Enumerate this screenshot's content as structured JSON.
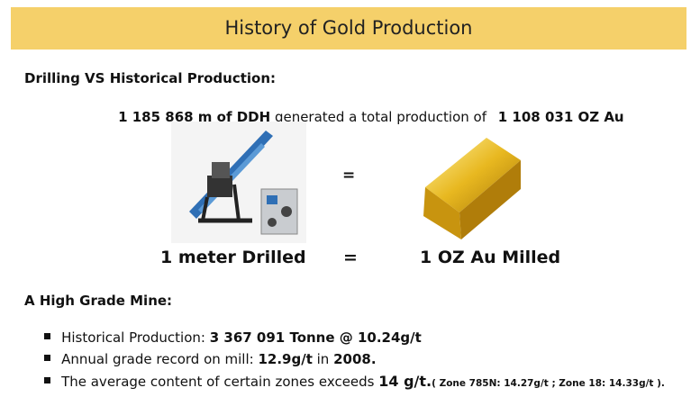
{
  "header": {
    "title": "History of Gold Production"
  },
  "drilling": {
    "heading": "Drilling VS Historical Production:",
    "summary": [
      "1 185 868 m of DDH",
      " generated a total production of ",
      "1 108 031 OZ Au"
    ]
  },
  "equation": {
    "image_equals": "=",
    "left": "1 meter Drilled",
    "equals": "=",
    "right": "1 OZ Au Milled"
  },
  "mine": {
    "heading": "A High Grade Mine:",
    "bullets": [
      [
        "Historical Production: ",
        "3 367 091 Tonne @ 10.24g/t"
      ],
      [
        "Annual grade record on mill: ",
        "12.9g/t",
        " in ",
        "2008."
      ],
      [
        "The average content of certain zones exceeds ",
        "14 g/t.",
        "( Zone 785N: 14.27g/t ; Zone 18: 14.33g/t )."
      ]
    ]
  }
}
